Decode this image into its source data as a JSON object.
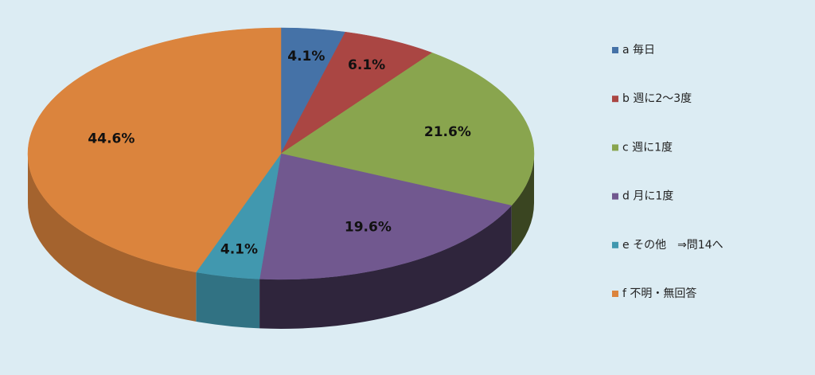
{
  "chart_data": {
    "type": "pie3d",
    "categories": [
      "a 毎日",
      "b 週に2～3度",
      "c 週に1度",
      "d 月に1度",
      "e その他　⇒問14へ",
      "f 不明・無回答"
    ],
    "values": [
      4.1,
      6.1,
      21.6,
      19.6,
      4.1,
      44.6
    ],
    "value_labels": [
      "4.1%",
      "6.1%",
      "21.6%",
      "19.6%",
      "4.1%",
      "44.6%"
    ],
    "colors": [
      "#4572a7",
      "#aa4643",
      "#89a54e",
      "#71588f",
      "#4198af",
      "#db843d"
    ],
    "legend": "right"
  }
}
